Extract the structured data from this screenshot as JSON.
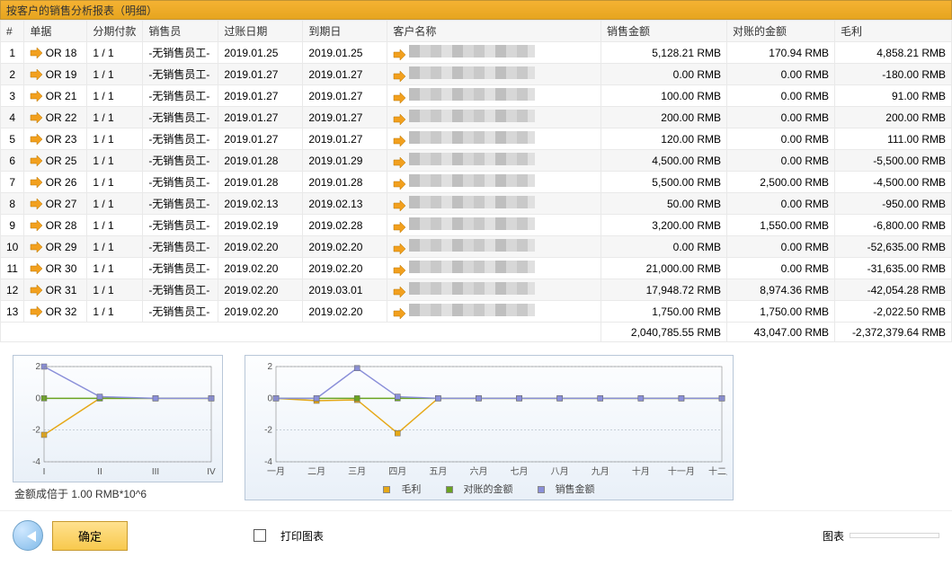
{
  "title": "按客户的销售分析报表（明细）",
  "columns": {
    "idx": "#",
    "doc": "单据",
    "installment": "分期付款",
    "salesperson": "销售员",
    "postdate": "过账日期",
    "duedate": "到期日",
    "customer": "客户名称",
    "sales_amt": "销售金额",
    "recon_amt": "对账的金额",
    "profit": "毛利"
  },
  "rows": [
    {
      "idx": 1,
      "doc": "OR 18",
      "inst": "1 / 1",
      "sp": "-无销售员工-",
      "pd": "2019.01.25",
      "dd": "2019.01.25",
      "sa": "5,128.21 RMB",
      "ra": "170.94 RMB",
      "pf": "4,858.21 RMB"
    },
    {
      "idx": 2,
      "doc": "OR 19",
      "inst": "1 / 1",
      "sp": "-无销售员工-",
      "pd": "2019.01.27",
      "dd": "2019.01.27",
      "sa": "0.00 RMB",
      "ra": "0.00 RMB",
      "pf": "-180.00 RMB"
    },
    {
      "idx": 3,
      "doc": "OR 21",
      "inst": "1 / 1",
      "sp": "-无销售员工-",
      "pd": "2019.01.27",
      "dd": "2019.01.27",
      "sa": "100.00 RMB",
      "ra": "0.00 RMB",
      "pf": "91.00 RMB"
    },
    {
      "idx": 4,
      "doc": "OR 22",
      "inst": "1 / 1",
      "sp": "-无销售员工-",
      "pd": "2019.01.27",
      "dd": "2019.01.27",
      "sa": "200.00 RMB",
      "ra": "0.00 RMB",
      "pf": "200.00 RMB"
    },
    {
      "idx": 5,
      "doc": "OR 23",
      "inst": "1 / 1",
      "sp": "-无销售员工-",
      "pd": "2019.01.27",
      "dd": "2019.01.27",
      "sa": "120.00 RMB",
      "ra": "0.00 RMB",
      "pf": "111.00 RMB"
    },
    {
      "idx": 6,
      "doc": "OR 25",
      "inst": "1 / 1",
      "sp": "-无销售员工-",
      "pd": "2019.01.28",
      "dd": "2019.01.29",
      "sa": "4,500.00 RMB",
      "ra": "0.00 RMB",
      "pf": "-5,500.00 RMB"
    },
    {
      "idx": 7,
      "doc": "OR 26",
      "inst": "1 / 1",
      "sp": "-无销售员工-",
      "pd": "2019.01.28",
      "dd": "2019.01.28",
      "sa": "5,500.00 RMB",
      "ra": "2,500.00 RMB",
      "pf": "-4,500.00 RMB"
    },
    {
      "idx": 8,
      "doc": "OR 27",
      "inst": "1 / 1",
      "sp": "-无销售员工-",
      "pd": "2019.02.13",
      "dd": "2019.02.13",
      "sa": "50.00 RMB",
      "ra": "0.00 RMB",
      "pf": "-950.00 RMB"
    },
    {
      "idx": 9,
      "doc": "OR 28",
      "inst": "1 / 1",
      "sp": "-无销售员工-",
      "pd": "2019.02.19",
      "dd": "2019.02.28",
      "sa": "3,200.00 RMB",
      "ra": "1,550.00 RMB",
      "pf": "-6,800.00 RMB"
    },
    {
      "idx": 10,
      "doc": "OR 29",
      "inst": "1 / 1",
      "sp": "-无销售员工-",
      "pd": "2019.02.20",
      "dd": "2019.02.20",
      "sa": "0.00 RMB",
      "ra": "0.00 RMB",
      "pf": "-52,635.00 RMB"
    },
    {
      "idx": 11,
      "doc": "OR 30",
      "inst": "1 / 1",
      "sp": "-无销售员工-",
      "pd": "2019.02.20",
      "dd": "2019.02.20",
      "sa": "21,000.00 RMB",
      "ra": "0.00 RMB",
      "pf": "-31,635.00 RMB"
    },
    {
      "idx": 12,
      "doc": "OR 31",
      "inst": "1 / 1",
      "sp": "-无销售员工-",
      "pd": "2019.02.20",
      "dd": "2019.03.01",
      "sa": "17,948.72 RMB",
      "ra": "8,974.36 RMB",
      "pf": "-42,054.28 RMB"
    },
    {
      "idx": 13,
      "doc": "OR 32",
      "inst": "1 / 1",
      "sp": "-无销售员工-",
      "pd": "2019.02.20",
      "dd": "2019.02.20",
      "sa": "1,750.00 RMB",
      "ra": "1,750.00 RMB",
      "pf": "-2,022.50 RMB"
    }
  ],
  "totals": {
    "sa": "2,040,785.55 RMB",
    "ra": "43,047.00 RMB",
    "pf": "-2,372,379.64 RMB"
  },
  "icon_color": "#f2a01e",
  "chart_small": {
    "type": "line",
    "xticks": [
      "I",
      "II",
      "III",
      "IV"
    ],
    "ylim": [
      -4,
      2
    ],
    "ytick_step": 2,
    "series": [
      {
        "name": "毛利",
        "color": "#e6a817",
        "values": [
          -2.3,
          0,
          0,
          0
        ]
      },
      {
        "name": "对账的金额",
        "color": "#6aa321",
        "values": [
          0,
          0,
          0,
          0
        ]
      },
      {
        "name": "销售金额",
        "color": "#8a8fd9",
        "values": [
          2,
          0.1,
          0,
          0
        ]
      }
    ],
    "grid_color": "#9aa6b2",
    "caption": "金额成倍于 1.00 RMB*10^6"
  },
  "chart_big": {
    "type": "line",
    "xticks": [
      "一月",
      "二月",
      "三月",
      "四月",
      "五月",
      "六月",
      "七月",
      "八月",
      "九月",
      "十月",
      "十一月",
      "十二月"
    ],
    "ylim": [
      -4,
      2
    ],
    "ytick_step": 2,
    "series": [
      {
        "name": "毛利",
        "color": "#e6a817",
        "values": [
          0,
          -0.15,
          -0.1,
          -2.2,
          0,
          0,
          0,
          0,
          0,
          0,
          0,
          0
        ]
      },
      {
        "name": "对账的金额",
        "color": "#6aa321",
        "values": [
          0,
          0,
          0,
          0,
          0,
          0,
          0,
          0,
          0,
          0,
          0,
          0
        ]
      },
      {
        "name": "销售金额",
        "color": "#8a8fd9",
        "values": [
          0,
          0,
          1.9,
          0.1,
          0,
          0,
          0,
          0,
          0,
          0,
          0,
          0
        ]
      }
    ],
    "grid_color": "#9aa6b2",
    "legend": [
      "毛利",
      "对账的金额",
      "销售金额"
    ]
  },
  "footer": {
    "ok": "确定",
    "print_charts": "打印图表",
    "combo_label": "图表"
  }
}
